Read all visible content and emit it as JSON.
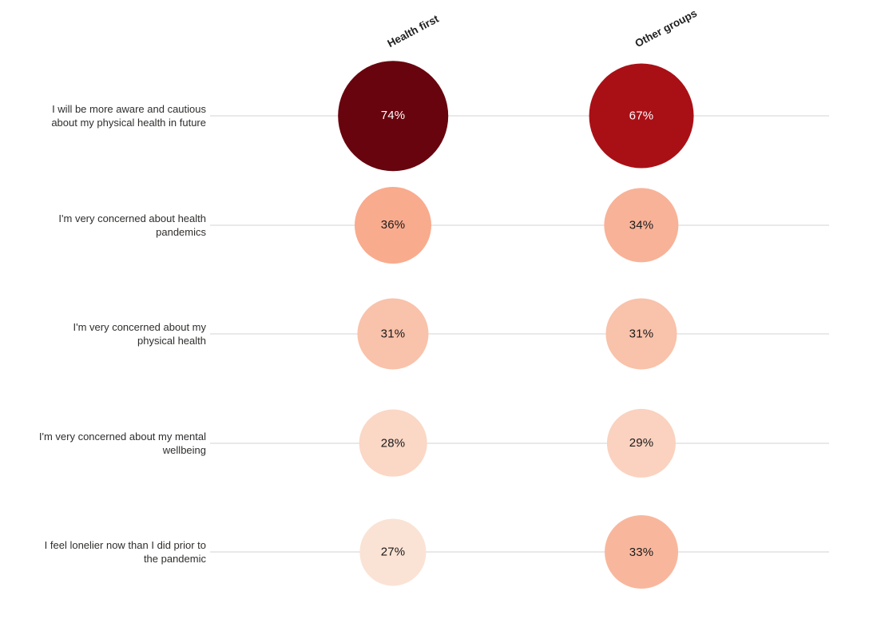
{
  "chart_data": {
    "type": "bubble",
    "title": "",
    "columns": [
      "Health first",
      "Other groups"
    ],
    "categories": [
      "I will be more aware and cautious about my physical health in future",
      "I'm very concerned about health pandemics",
      "I'm very concerned about my physical health",
      "I'm very concerned about my mental wellbeing",
      "I feel lonelier now than I did prior to the pandemic"
    ],
    "series": [
      {
        "name": "Health first",
        "values": [
          74,
          36,
          31,
          28,
          27
        ]
      },
      {
        "name": "Other groups",
        "values": [
          67,
          34,
          31,
          29,
          33
        ]
      }
    ],
    "value_format": "percent",
    "size_encoding": "circle area proportional to value",
    "color_encoding": "sequential reds, darker = higher value",
    "grid": true,
    "legend": "none",
    "background_color": "#ffffff",
    "gridline_color": "#e9e9e9",
    "label_color": "#302e2c",
    "header_color": "#1f1f1f",
    "rows": [
      {
        "lines": [
          "I will be more aware and cautious",
          "about my physical health in future"
        ],
        "points": [
          {
            "value": 74,
            "label": "74%",
            "color": "#68040e",
            "label_color": "#ffffff"
          },
          {
            "value": 67,
            "label": "67%",
            "color": "#a91016",
            "label_color": "#ffffff"
          }
        ]
      },
      {
        "lines": [
          "I'm very concerned about health",
          "pandemics"
        ],
        "points": [
          {
            "value": 36,
            "label": "36%",
            "color": "#f9ab8e",
            "label_color": "#1a1a1a"
          },
          {
            "value": 34,
            "label": "34%",
            "color": "#f8b298",
            "label_color": "#1a1a1a"
          }
        ]
      },
      {
        "lines": [
          "I'm very concerned about my",
          "physical health"
        ],
        "points": [
          {
            "value": 31,
            "label": "31%",
            "color": "#f9c2aa",
            "label_color": "#1a1a1a"
          },
          {
            "value": 31,
            "label": "31%",
            "color": "#f9c2aa",
            "label_color": "#1a1a1a"
          }
        ]
      },
      {
        "lines": [
          "I'm very concerned about my mental",
          "wellbeing"
        ],
        "points": [
          {
            "value": 28,
            "label": "28%",
            "color": "#fbd7c6",
            "label_color": "#1a1a1a"
          },
          {
            "value": 29,
            "label": "29%",
            "color": "#fad2bf",
            "label_color": "#1a1a1a"
          }
        ]
      },
      {
        "lines": [
          "I feel lonelier now than I did prior to",
          "the pandemic"
        ],
        "points": [
          {
            "value": 27,
            "label": "27%",
            "color": "#fae3d5",
            "label_color": "#1a1a1a"
          },
          {
            "value": 33,
            "label": "33%",
            "color": "#f8b79d",
            "label_color": "#1a1a1a"
          }
        ]
      }
    ]
  }
}
